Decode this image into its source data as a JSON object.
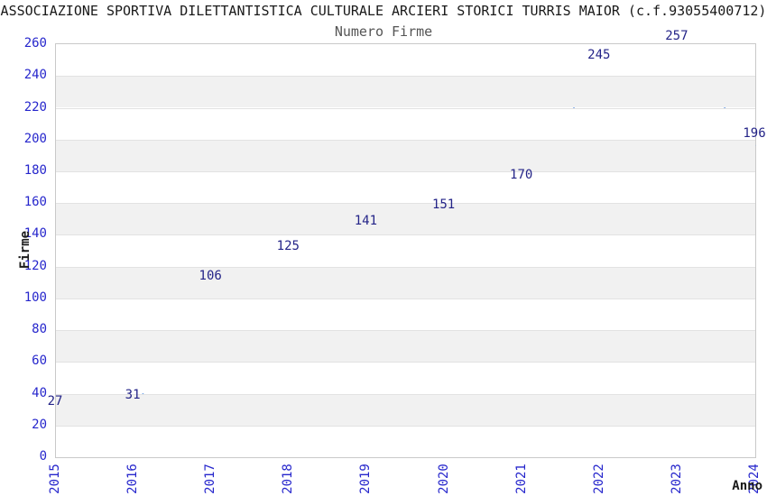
{
  "chart": {
    "title": "ASSOCIAZIONE SPORTIVA DILETTANTISTICA CULTURALE ARCIERI STORICI TURRIS MAIOR (c.f.93055400712)",
    "subtitle": "Numero Firme",
    "xlabel": "Anno",
    "ylabel": "Firme"
  },
  "chart_data": {
    "type": "line",
    "x": [
      "2015",
      "2016",
      "2017",
      "2018",
      "2019",
      "2020",
      "2021",
      "2022",
      "2023",
      "2024"
    ],
    "values": [
      27,
      31,
      106,
      125,
      141,
      151,
      170,
      245,
      257,
      196
    ],
    "title": "ASSOCIAZIONE SPORTIVA DILETTANTISTICA CULTURALE ARCIERI STORICI TURRIS MAIOR (c.f.93055400712)",
    "subtitle": "Numero Firme",
    "xlabel": "Anno",
    "ylabel": "Firme",
    "ylim": [
      0,
      260
    ],
    "ytick_step": 20,
    "grid": "horizontal-alternating-bands",
    "legend": "none",
    "point_labels": true
  },
  "colors": {
    "title": "#1a1a1a",
    "subtitle": "#555555",
    "axis_label": "#1a1a1a",
    "tick_label": "#2626cc",
    "data_label": "#242488",
    "line": "#74a4e8",
    "band_gray": "#f1f1f1",
    "gridline": "#e2e2e2",
    "border": "#c9c9c9",
    "background": "#ffffff"
  }
}
